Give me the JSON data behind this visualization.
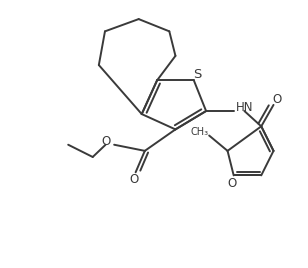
{
  "bg_color": "#ffffff",
  "line_color": "#3a3a3a",
  "line_width": 1.4,
  "font_size": 8.5,
  "figsize": [
    3.08,
    2.68
  ],
  "dpi": 100,
  "xlim": [
    0,
    10
  ],
  "ylim": [
    0,
    8.7
  ]
}
